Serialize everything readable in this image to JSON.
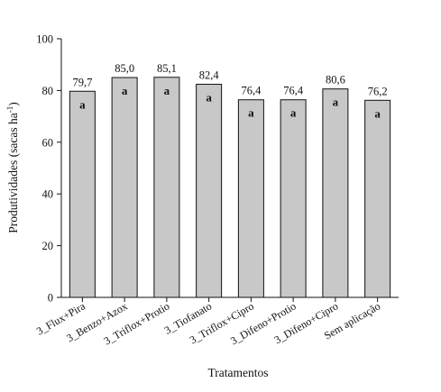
{
  "chart_data": {
    "type": "bar",
    "categories": [
      "3_Flux+Pira",
      "3_Benzo+Azox",
      "3_Triflox+Protio",
      "3_Tiofanato",
      "3_Triflox+Cipro",
      "3_Difeno+Protio",
      "3_Difeno+Cipro",
      "Sem aplicação"
    ],
    "values": [
      79.7,
      85.0,
      85.1,
      82.4,
      76.4,
      76.4,
      80.6,
      76.2
    ],
    "data_labels": [
      "79,7",
      "85,0",
      "85,1",
      "82,4",
      "76,4",
      "76,4",
      "80,6",
      "76,2"
    ],
    "group_letters": [
      "a",
      "a",
      "a",
      "a",
      "a",
      "a",
      "a",
      "a"
    ],
    "xlabel": "Tratamentos",
    "ylabel_main": "Produtividades (sacas ha",
    "ylabel_sup": "-1",
    "ylabel_close": ")",
    "ylim": [
      0,
      100
    ],
    "yticks": [
      "0",
      "20",
      "40",
      "60",
      "80",
      "100"
    ],
    "ytick_values": [
      0,
      20,
      40,
      60,
      80,
      100
    ],
    "grid": false,
    "colors": {
      "bar_fill": "#c8c8c8",
      "bar_stroke": "#111111",
      "axis": "#111111"
    }
  }
}
